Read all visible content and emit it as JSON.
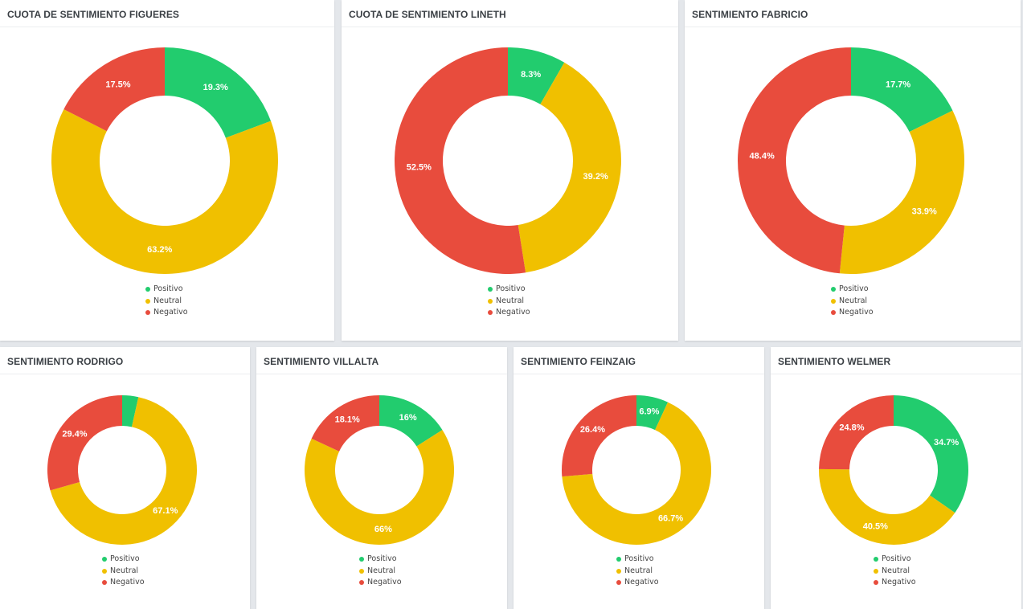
{
  "colors": {
    "positivo": "#22cc6e",
    "neutral": "#f0c000",
    "negativo": "#e84c3d"
  },
  "legend": [
    "Positivo",
    "Neutral",
    "Negativo"
  ],
  "chart_data": [
    {
      "type": "pie",
      "title": "CUOTA DE SENTIMIENTO FIGUERES",
      "categories": [
        "Positivo",
        "Neutral",
        "Negativo"
      ],
      "values": [
        19.3,
        63.2,
        17.5
      ],
      "labels": [
        "19.3%",
        "63.2%",
        "17.5%"
      ],
      "legend_position": "bottom"
    },
    {
      "type": "pie",
      "title": "CUOTA DE SENTIMIENTO LINETH",
      "categories": [
        "Positivo",
        "Neutral",
        "Negativo"
      ],
      "values": [
        8.3,
        39.2,
        52.5
      ],
      "labels": [
        "8.3%",
        "39.2%",
        "52.5%"
      ],
      "legend_position": "bottom"
    },
    {
      "type": "pie",
      "title": "SENTIMIENTO FABRICIO",
      "categories": [
        "Positivo",
        "Neutral",
        "Negativo"
      ],
      "values": [
        17.7,
        33.9,
        48.4
      ],
      "labels": [
        "17.7%",
        "33.9%",
        "48.4%"
      ],
      "legend_position": "bottom"
    },
    {
      "type": "pie",
      "title": "SENTIMIENTO RODRIGO",
      "categories": [
        "Positivo",
        "Neutral",
        "Negativo"
      ],
      "values": [
        3.5,
        67.1,
        29.4
      ],
      "labels": [
        "",
        "67.1%",
        "29.4%"
      ],
      "legend_position": "bottom"
    },
    {
      "type": "pie",
      "title": "SENTIMIENTO VILLALTA",
      "categories": [
        "Positivo",
        "Neutral",
        "Negativo"
      ],
      "values": [
        16,
        66,
        18.1
      ],
      "labels": [
        "16%",
        "66%",
        "18.1%"
      ],
      "legend_position": "bottom"
    },
    {
      "type": "pie",
      "title": "SENTIMIENTO FEINZAIG",
      "categories": [
        "Positivo",
        "Neutral",
        "Negativo"
      ],
      "values": [
        6.9,
        66.7,
        26.4
      ],
      "labels": [
        "6.9%",
        "66.7%",
        "26.4%"
      ],
      "legend_position": "bottom"
    },
    {
      "type": "pie",
      "title": "SENTIMIENTO WELMER",
      "categories": [
        "Positivo",
        "Neutral",
        "Negativo"
      ],
      "values": [
        34.7,
        40.5,
        24.8
      ],
      "labels": [
        "34.7%",
        "40.5%",
        "24.8%"
      ],
      "legend_position": "bottom"
    }
  ]
}
